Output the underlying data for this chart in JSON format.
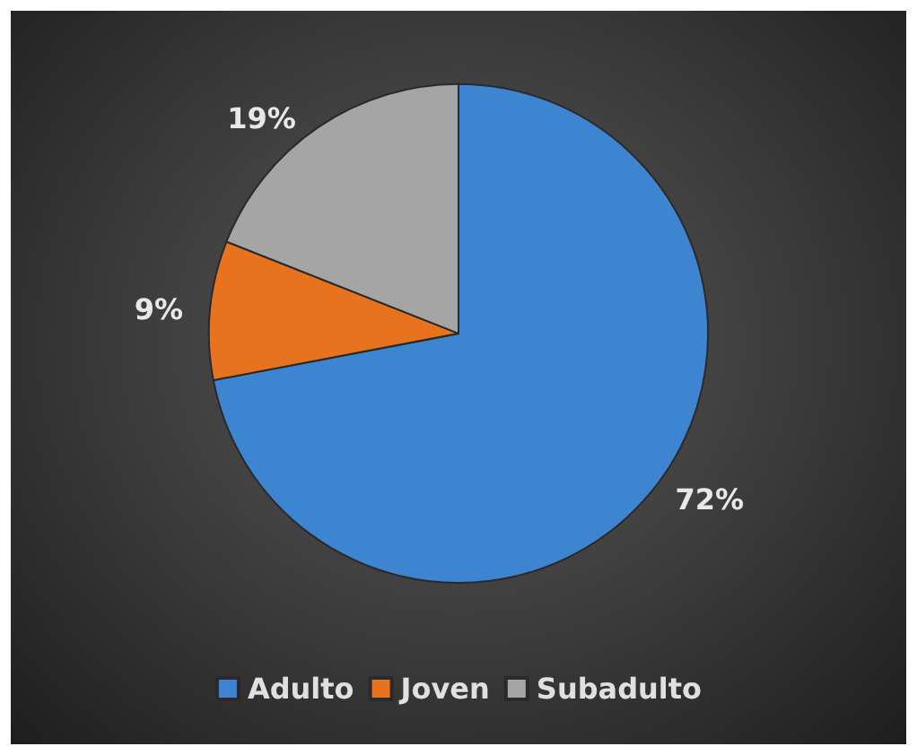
{
  "chart_data": {
    "type": "pie",
    "categories": [
      "Adulto",
      "Joven",
      "Subadulto"
    ],
    "values": [
      72,
      9,
      19
    ],
    "colors": [
      "#3d85d1",
      "#e8731e",
      "#a5a5a5"
    ],
    "value_labels": [
      "72%",
      "9%",
      "19%"
    ],
    "legend": "bottom"
  }
}
